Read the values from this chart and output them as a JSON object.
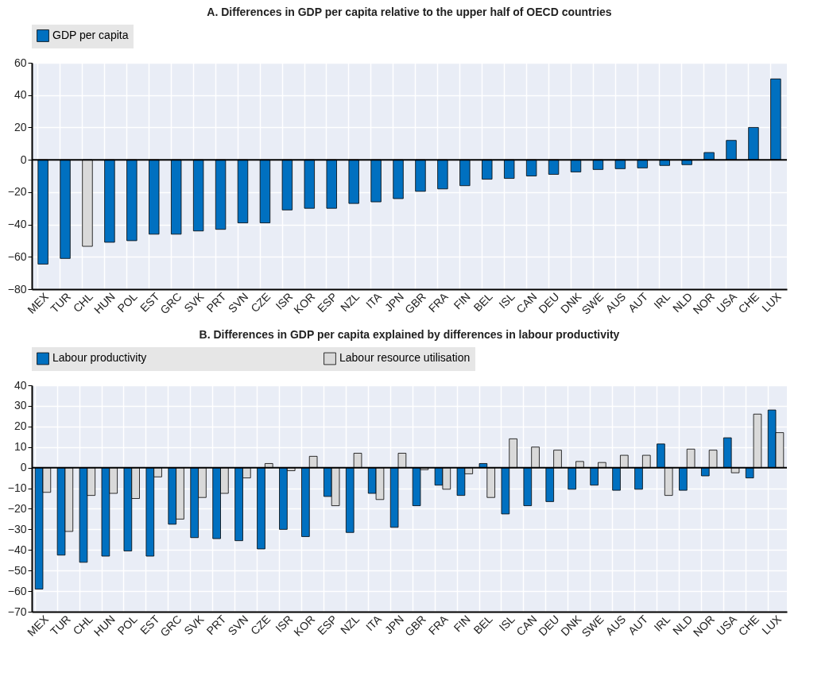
{
  "chart_data": [
    {
      "type": "bar",
      "title": "A. Differences in GDP per capita relative to the upper half of OECD countries",
      "categories": [
        "MEX",
        "TUR",
        "CHL",
        "HUN",
        "POL",
        "EST",
        "GRC",
        "SVK",
        "PRT",
        "SVN",
        "CZE",
        "ISR",
        "KOR",
        "ESP",
        "NZL",
        "ITA",
        "JPN",
        "GBR",
        "FRA",
        "FIN",
        "BEL",
        "ISL",
        "CAN",
        "DEU",
        "DNK",
        "SWE",
        "AUS",
        "AUT",
        "IRL",
        "NLD",
        "NOR",
        "USA",
        "CHE",
        "LUX"
      ],
      "series": [
        {
          "name": "GDP per capita",
          "color": "#0070c0",
          "colors": [
            "#0070c0",
            "#0070c0",
            "#d9d9d9",
            "#0070c0",
            "#0070c0",
            "#0070c0",
            "#0070c0",
            "#0070c0",
            "#0070c0",
            "#0070c0",
            "#0070c0",
            "#0070c0",
            "#0070c0",
            "#0070c0",
            "#0070c0",
            "#0070c0",
            "#0070c0",
            "#0070c0",
            "#0070c0",
            "#0070c0",
            "#0070c0",
            "#0070c0",
            "#0070c0",
            "#0070c0",
            "#0070c0",
            "#0070c0",
            "#0070c0",
            "#0070c0",
            "#0070c0",
            "#0070c0",
            "#0070c0",
            "#0070c0",
            "#0070c0",
            "#0070c0"
          ],
          "values": [
            -64.5,
            -61,
            -53.5,
            -51,
            -50,
            -46,
            -46,
            -44,
            -43,
            -39,
            -39,
            -31,
            -30,
            -30,
            -27,
            -26,
            -24,
            -19.5,
            -18,
            -16,
            -12,
            -11.5,
            -10,
            -9,
            -7.5,
            -6,
            -5.5,
            -5,
            -3.5,
            -3,
            4.5,
            12,
            20,
            50
          ]
        }
      ],
      "ylim": [
        -80,
        60
      ],
      "yticks": [
        -80,
        -60,
        -40,
        -20,
        0,
        20,
        40,
        60
      ],
      "grid": true,
      "legend": "top",
      "ref_lines": [
        {
          "axis": "y",
          "value": 0
        }
      ]
    },
    {
      "type": "bar",
      "title": "B. Differences in GDP per capita explained by differences in labour productivity",
      "categories": [
        "MEX",
        "TUR",
        "CHL",
        "HUN",
        "POL",
        "EST",
        "GRC",
        "SVK",
        "PRT",
        "SVN",
        "CZE",
        "ISR",
        "KOR",
        "ESP",
        "NZL",
        "ITA",
        "JPN",
        "GBR",
        "FRA",
        "FIN",
        "BEL",
        "ISL",
        "CAN",
        "DEU",
        "DNK",
        "SWE",
        "AUS",
        "AUT",
        "IRL",
        "NLD",
        "NOR",
        "USA",
        "CHE",
        "LUX"
      ],
      "series": [
        {
          "name": "Labour productivity",
          "color": "#0070c0",
          "values": [
            -59,
            -42.5,
            -46,
            -43,
            -40.5,
            -43,
            -27.5,
            -34,
            -34.5,
            -35.5,
            -39.5,
            -30,
            -33.5,
            -14,
            -31.5,
            -12.5,
            -29,
            -18.5,
            -8.5,
            -13.5,
            2,
            -22.5,
            -18.5,
            -16.5,
            -10.5,
            -8.5,
            -11,
            -10.5,
            11.5,
            -11,
            -4,
            14.5,
            -5,
            28
          ]
        },
        {
          "name": "Labour resource utilisation",
          "color": "#d9d9d9",
          "values": [
            -12,
            -31,
            -13.5,
            -12.5,
            -15,
            -4.5,
            -25,
            -14.5,
            -12.5,
            -5,
            2,
            -1.5,
            5.5,
            -18.5,
            7,
            -15.5,
            7,
            -1,
            -10.5,
            -3,
            -14.5,
            14,
            10,
            8.5,
            3,
            2.5,
            6,
            6,
            -13.5,
            9,
            8.5,
            -2.5,
            26,
            17
          ]
        }
      ],
      "ylim": [
        -70,
        40
      ],
      "yticks": [
        -70,
        -60,
        -50,
        -40,
        -30,
        -20,
        -10,
        0,
        10,
        20,
        30,
        40
      ],
      "grid": true,
      "legend": "top",
      "ref_lines": [
        {
          "axis": "y",
          "value": 0
        }
      ]
    }
  ]
}
